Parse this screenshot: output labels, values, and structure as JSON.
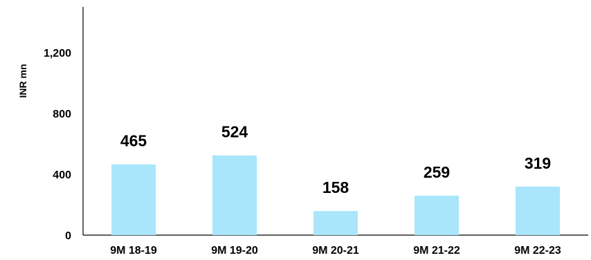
{
  "chart_data": {
    "type": "bar",
    "categories": [
      "9M 18-19",
      "9M 19-20",
      "9M 20-21",
      "9M 21-22",
      "9M 22-23"
    ],
    "values": [
      465,
      524,
      158,
      259,
      319
    ],
    "data_labels": [
      "465",
      "524",
      "158",
      "259",
      "319"
    ],
    "ylabel": "INR mn",
    "ylim": [
      0,
      1500
    ],
    "yticks": [
      0,
      400,
      800,
      1200
    ],
    "ytick_labels": [
      "0",
      "400",
      "800",
      "1,200"
    ],
    "grid": false,
    "legend": "none",
    "bar_color": "#a9e5fb",
    "axis_color": "#000000"
  }
}
